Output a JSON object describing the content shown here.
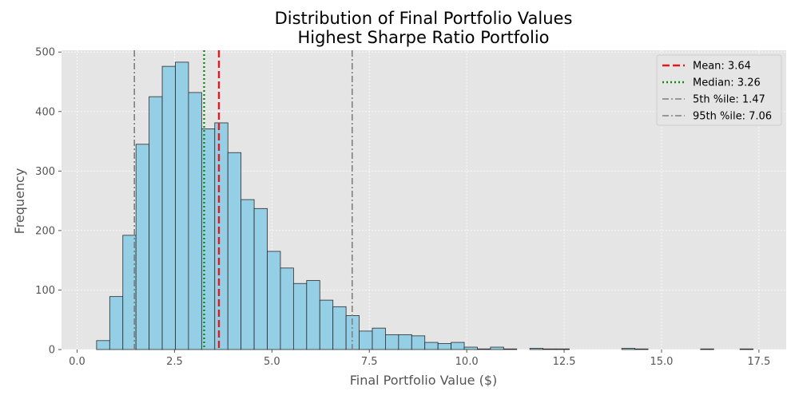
{
  "chart_data": {
    "type": "bar",
    "title": "Distribution of Final Portfolio Values",
    "subtitle": "Highest Sharpe Ratio Portfolio",
    "xlabel": "Final Portfolio Value ($)",
    "ylabel": "Frequency",
    "xlim": [
      -0.4,
      18.2
    ],
    "ylim": [
      0,
      503
    ],
    "xticks": [
      0.0,
      2.5,
      5.0,
      7.5,
      10.0,
      12.5,
      15.0,
      17.5
    ],
    "xtick_labels": [
      "0.0",
      "2.5",
      "5.0",
      "7.5",
      "10.0",
      "12.5",
      "15.0",
      "17.5"
    ],
    "yticks": [
      0,
      100,
      200,
      300,
      400,
      500
    ],
    "ytick_labels": [
      "0",
      "100",
      "200",
      "300",
      "400",
      "500"
    ],
    "grid": true,
    "legend_position": "top-right",
    "colors": {
      "background": "#e5e5e5",
      "bar_fill": "#95cfe6",
      "bar_edge": "#2a2a2a",
      "grid": "#ffffff"
    },
    "bins": {
      "start": 0.5,
      "width": 0.337,
      "counts": [
        15,
        89,
        192,
        345,
        425,
        476,
        483,
        432,
        371,
        381,
        331,
        252,
        237,
        165,
        137,
        111,
        116,
        83,
        72,
        57,
        31,
        36,
        25,
        25,
        23,
        12,
        10,
        12,
        4,
        1,
        4,
        1,
        0,
        2,
        1,
        1,
        0,
        0,
        0,
        0,
        2,
        1,
        0,
        0,
        0,
        0,
        1,
        0,
        0,
        1,
        0,
        0,
        0,
        0,
        0,
        0,
        0,
        1,
        0,
        0,
        0,
        0
      ]
    },
    "reference_lines": [
      {
        "name": "Mean: 3.64",
        "value": 3.64,
        "color": "#e41a1c",
        "style": "dashed"
      },
      {
        "name": "Median: 3.26",
        "value": 3.26,
        "color": "#128a12",
        "style": "dotted"
      },
      {
        "name": "5th %ile: 1.47",
        "value": 1.47,
        "color": "#7f7f7f",
        "style": "dashdot"
      },
      {
        "name": "95th %ile: 7.06",
        "value": 7.06,
        "color": "#7f7f7f",
        "style": "dashdot"
      }
    ]
  }
}
